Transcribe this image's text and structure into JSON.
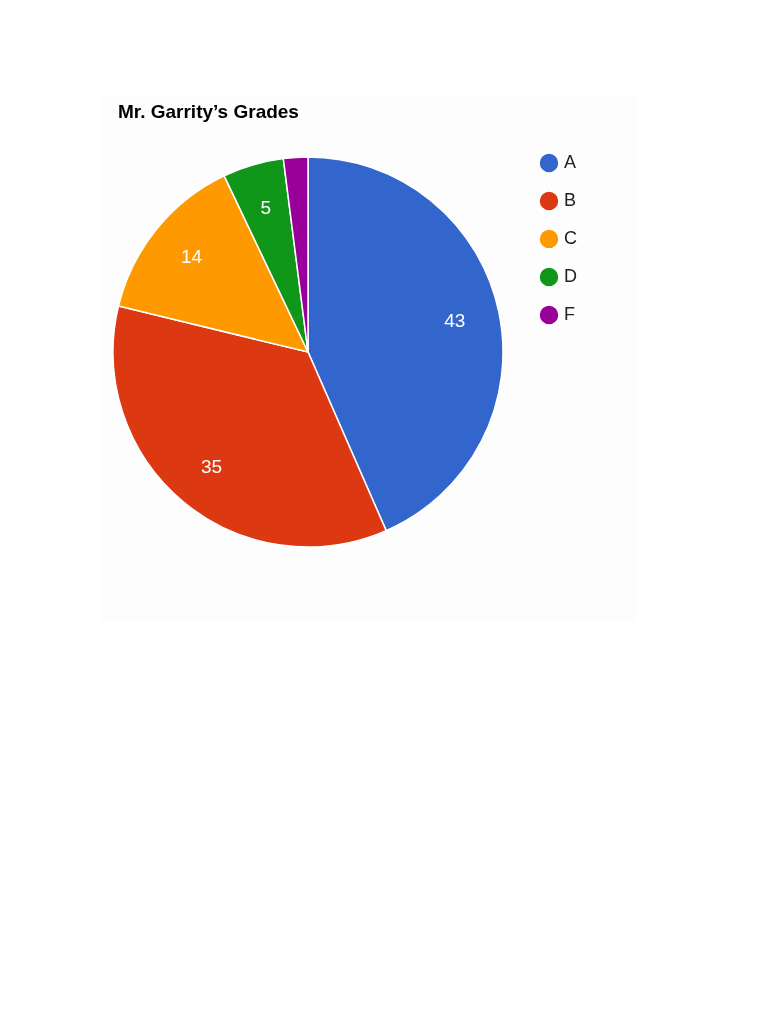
{
  "chart_data": {
    "type": "pie",
    "title": "Mr. Garrity’s Grades",
    "categories": [
      "A",
      "B",
      "C",
      "D",
      "F"
    ],
    "values": [
      43,
      35,
      14,
      5,
      2
    ],
    "colors": [
      "#3366cc",
      "#dc3912",
      "#ff9900",
      "#109618",
      "#990099"
    ],
    "value_labels": [
      "43",
      "35",
      "14",
      "5",
      null
    ],
    "legend": "top right"
  }
}
